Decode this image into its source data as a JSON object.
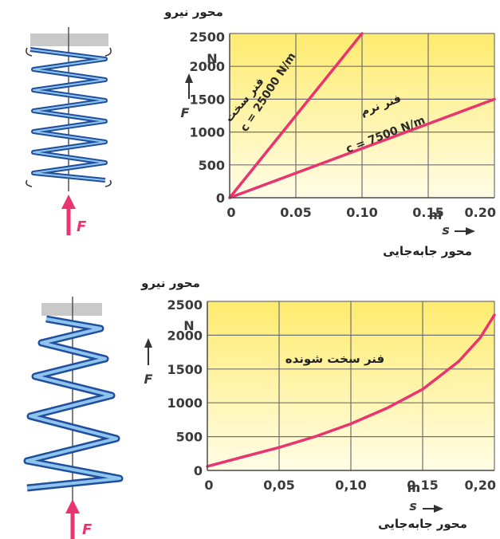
{
  "colors": {
    "curve": "#e8356f",
    "arrow": "#e8356f",
    "grid": "#707070",
    "plot_top": "#ffeb6e",
    "plot_bottom": "#fffde6",
    "spring_dark": "#1f4f9c",
    "spring_light": "#8fc4ee"
  },
  "icons": [
    "spring-icon",
    "force-arrow-icon",
    "axis-arrow-icon"
  ],
  "chart_data": [
    {
      "type": "line",
      "xlabel": "s",
      "ylabel": "F",
      "y_unit": "N",
      "x_unit": "m",
      "force_axis_label": "محور نیرو",
      "displacement_axis_label": "محور جابه‌جایی",
      "xlim": [
        0,
        0.2
      ],
      "ylim": [
        0,
        2500
      ],
      "x_ticks": [
        "0",
        "0.05",
        "0.10",
        "0.15",
        "0.20"
      ],
      "y_ticks": [
        "0",
        "500",
        "1000",
        "1500",
        "2000",
        "2500"
      ],
      "grid": true,
      "series": [
        {
          "name": "c = 25000 N/m",
          "annotation": "فنر سخت",
          "x": [
            0,
            0.1
          ],
          "y": [
            0,
            2500
          ]
        },
        {
          "name": "c = 7500 N/m",
          "annotation": "فنر نرم",
          "x": [
            0,
            0.2
          ],
          "y": [
            0,
            1500
          ]
        }
      ]
    },
    {
      "type": "line",
      "xlabel": "s",
      "ylabel": "F",
      "y_unit": "N",
      "x_unit": "m",
      "force_axis_label": "محور نیرو",
      "displacement_axis_label": "محور جابه‌جایی",
      "xlim": [
        0,
        0.2
      ],
      "ylim": [
        0,
        2500
      ],
      "x_ticks": [
        "0",
        "0,05",
        "0,10",
        "0,15",
        "0,20"
      ],
      "y_ticks": [
        "0",
        "500",
        "1000",
        "1500",
        "2000",
        "2500"
      ],
      "grid": true,
      "series": [
        {
          "annotation": "فنر سخت شونده",
          "x": [
            0,
            0.025,
            0.05,
            0.075,
            0.1,
            0.125,
            0.15,
            0.175,
            0.19,
            0.2
          ],
          "y": [
            60,
            200,
            340,
            500,
            690,
            920,
            1200,
            1610,
            1960,
            2300
          ]
        }
      ]
    }
  ]
}
